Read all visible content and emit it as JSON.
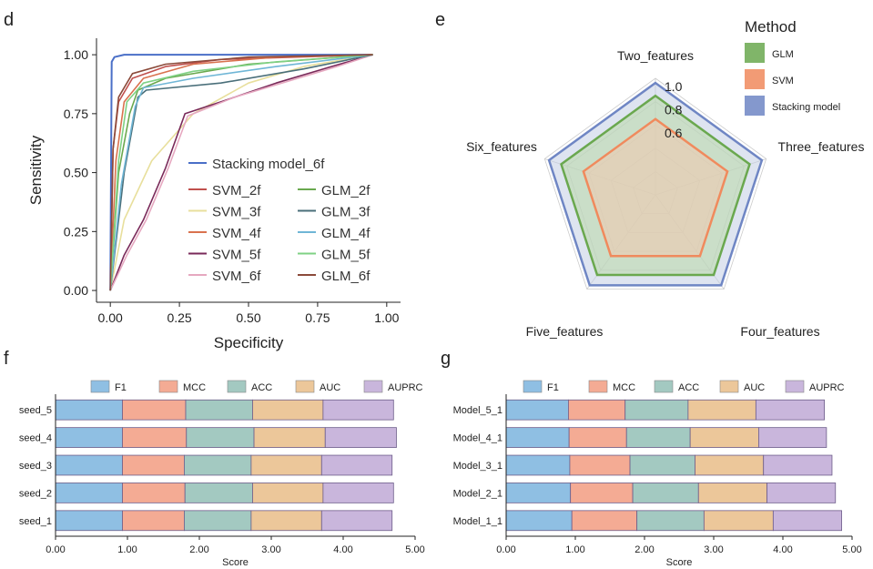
{
  "panel_labels": {
    "d": "d",
    "e": "e",
    "f": "f",
    "g": "g"
  },
  "chart_data": [
    {
      "type": "line",
      "panel": "d",
      "xlabel": "Specificity",
      "ylabel": "Sensitivity",
      "xlim": [
        -0.05,
        1.05
      ],
      "ylim": [
        -0.05,
        1.07
      ],
      "xticks": [
        "0.00",
        "0.25",
        "0.50",
        "0.75",
        "1.00"
      ],
      "yticks": [
        "0.00",
        "0.25",
        "0.50",
        "0.75",
        "1.00"
      ],
      "legend_position": "bottom-right",
      "series": [
        {
          "name": "Stacking model_6f",
          "color": "#4a6fc7",
          "points": [
            [
              0,
              0
            ],
            [
              0.005,
              0.97
            ],
            [
              0.015,
              0.99
            ],
            [
              0.05,
              1.0
            ],
            [
              0.95,
              1.0
            ]
          ]
        },
        {
          "name": "SVM_2f",
          "color": "#c0504d",
          "points": [
            [
              0,
              0
            ],
            [
              0.01,
              0.6
            ],
            [
              0.03,
              0.8
            ],
            [
              0.08,
              0.9
            ],
            [
              0.2,
              0.95
            ],
            [
              0.4,
              0.98
            ],
            [
              0.95,
              1.0
            ]
          ]
        },
        {
          "name": "SVM_3f",
          "color": "#e8df9c",
          "points": [
            [
              0,
              0
            ],
            [
              0.05,
              0.3
            ],
            [
              0.15,
              0.55
            ],
            [
              0.3,
              0.75
            ],
            [
              0.5,
              0.88
            ],
            [
              0.7,
              0.95
            ],
            [
              0.95,
              1.0
            ]
          ]
        },
        {
          "name": "SVM_4f",
          "color": "#d9724e",
          "points": [
            [
              0,
              0
            ],
            [
              0.02,
              0.55
            ],
            [
              0.05,
              0.8
            ],
            [
              0.12,
              0.9
            ],
            [
              0.3,
              0.96
            ],
            [
              0.6,
              0.99
            ],
            [
              0.95,
              1.0
            ]
          ]
        },
        {
          "name": "SVM_5f",
          "color": "#7a2a5a",
          "points": [
            [
              0,
              0
            ],
            [
              0.05,
              0.15
            ],
            [
              0.12,
              0.3
            ],
            [
              0.2,
              0.52
            ],
            [
              0.27,
              0.75
            ],
            [
              0.4,
              0.8
            ],
            [
              0.6,
              0.88
            ],
            [
              0.8,
              0.95
            ],
            [
              0.95,
              1.0
            ]
          ]
        },
        {
          "name": "SVM_6f",
          "color": "#e6a8c0",
          "points": [
            [
              0,
              0
            ],
            [
              0.06,
              0.15
            ],
            [
              0.13,
              0.3
            ],
            [
              0.21,
              0.52
            ],
            [
              0.28,
              0.74
            ],
            [
              0.45,
              0.82
            ],
            [
              0.65,
              0.89
            ],
            [
              0.82,
              0.95
            ],
            [
              0.95,
              1.0
            ]
          ]
        },
        {
          "name": "GLM_2f",
          "color": "#6aa84f",
          "points": [
            [
              0,
              0
            ],
            [
              0.03,
              0.5
            ],
            [
              0.07,
              0.75
            ],
            [
              0.1,
              0.85
            ],
            [
              0.2,
              0.9
            ],
            [
              0.5,
              0.96
            ],
            [
              0.95,
              1.0
            ]
          ]
        },
        {
          "name": "GLM_3f",
          "color": "#4a6f7a",
          "points": [
            [
              0,
              0
            ],
            [
              0.05,
              0.5
            ],
            [
              0.1,
              0.82
            ],
            [
              0.13,
              0.85
            ],
            [
              0.4,
              0.88
            ],
            [
              0.7,
              0.94
            ],
            [
              0.95,
              1.0
            ]
          ]
        },
        {
          "name": "GLM_4f",
          "color": "#6fb6d6",
          "points": [
            [
              0,
              0
            ],
            [
              0.04,
              0.45
            ],
            [
              0.09,
              0.78
            ],
            [
              0.12,
              0.86
            ],
            [
              0.3,
              0.9
            ],
            [
              0.6,
              0.95
            ],
            [
              0.95,
              1.0
            ]
          ]
        },
        {
          "name": "GLM_5f",
          "color": "#7fd184",
          "points": [
            [
              0,
              0
            ],
            [
              0.03,
              0.55
            ],
            [
              0.06,
              0.8
            ],
            [
              0.12,
              0.88
            ],
            [
              0.3,
              0.93
            ],
            [
              0.6,
              0.97
            ],
            [
              0.95,
              1.0
            ]
          ]
        },
        {
          "name": "GLM_6f",
          "color": "#8b4a3a",
          "points": [
            [
              0,
              0
            ],
            [
              0.01,
              0.6
            ],
            [
              0.03,
              0.82
            ],
            [
              0.08,
              0.92
            ],
            [
              0.2,
              0.96
            ],
            [
              0.5,
              0.99
            ],
            [
              0.95,
              1.0
            ]
          ]
        }
      ]
    },
    {
      "type": "radar",
      "panel": "e",
      "axes": [
        "Two_features",
        "Three_features",
        "Four_features",
        "Five_features",
        "Six_features"
      ],
      "rticks": [
        "0.6",
        "0.8",
        "1.0"
      ],
      "rlim": [
        0,
        1.0
      ],
      "legend_title": "Method",
      "series": [
        {
          "name": "GLM",
          "color": "#6aa84f",
          "fill": "#b9d8a8",
          "values": [
            0.85,
            0.85,
            0.85,
            0.85,
            0.85
          ]
        },
        {
          "name": "SVM",
          "color": "#f08a5d",
          "fill": "#f2c9ae",
          "values": [
            0.65,
            0.65,
            0.65,
            0.65,
            0.65
          ]
        },
        {
          "name": "Stacking model",
          "color": "#6f86c4",
          "fill": "#c3cde4",
          "values": [
            0.96,
            0.96,
            0.96,
            0.96,
            0.96
          ]
        }
      ]
    },
    {
      "type": "bar",
      "orientation": "horizontal",
      "stacked": true,
      "panel": "f",
      "xlabel": "Score",
      "xlim": [
        0,
        5
      ],
      "xticks": [
        "0.00",
        "1.00",
        "2.00",
        "3.00",
        "4.00",
        "5.00"
      ],
      "categories": [
        "seed_5",
        "seed_4",
        "seed_3",
        "seed_2",
        "seed_1"
      ],
      "series": [
        {
          "name": "F1",
          "color": "#8fbfe3",
          "values": [
            0.93,
            0.93,
            0.93,
            0.93,
            0.93
          ]
        },
        {
          "name": "MCC",
          "color": "#f4ab94",
          "values": [
            0.88,
            0.89,
            0.86,
            0.87,
            0.86
          ]
        },
        {
          "name": "ACC",
          "color": "#a3c9c1",
          "values": [
            0.93,
            0.94,
            0.93,
            0.94,
            0.93
          ]
        },
        {
          "name": "AUC",
          "color": "#ecc79a",
          "values": [
            0.98,
            0.99,
            0.98,
            0.98,
            0.98
          ]
        },
        {
          "name": "AUPRC",
          "color": "#c9b6dc",
          "values": [
            0.98,
            0.99,
            0.98,
            0.98,
            0.98
          ]
        }
      ]
    },
    {
      "type": "bar",
      "orientation": "horizontal",
      "stacked": true,
      "panel": "g",
      "xlabel": "Score",
      "xlim": [
        0,
        5
      ],
      "xticks": [
        "0.00",
        "1.00",
        "2.00",
        "3.00",
        "4.00",
        "5.00"
      ],
      "categories": [
        "Model_5_1",
        "Model_4_1",
        "Model_3_1",
        "Model_2_1",
        "Model_1_1"
      ],
      "series": [
        {
          "name": "F1",
          "color": "#8fbfe3",
          "values": [
            0.9,
            0.91,
            0.92,
            0.93,
            0.95
          ]
        },
        {
          "name": "MCC",
          "color": "#f4ab94",
          "values": [
            0.82,
            0.83,
            0.87,
            0.9,
            0.94
          ]
        },
        {
          "name": "ACC",
          "color": "#a3c9c1",
          "values": [
            0.91,
            0.92,
            0.94,
            0.95,
            0.97
          ]
        },
        {
          "name": "AUC",
          "color": "#ecc79a",
          "values": [
            0.98,
            0.99,
            0.99,
            0.99,
            1.0
          ]
        },
        {
          "name": "AUPRC",
          "color": "#c9b6dc",
          "values": [
            0.99,
            0.98,
            0.99,
            0.99,
            0.99
          ]
        }
      ]
    }
  ]
}
